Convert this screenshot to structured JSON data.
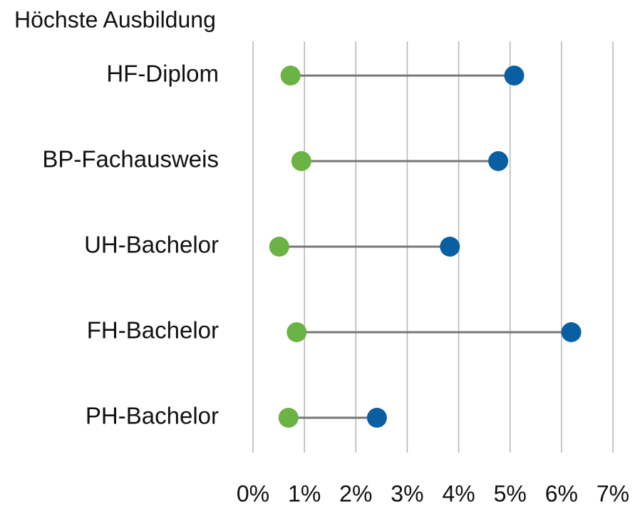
{
  "chart_data": {
    "type": "dumbbell",
    "title": "Höchste Ausbildung",
    "categories": [
      "HF-Diplom",
      "BP-Fachausweis",
      "UH-Bachelor",
      "FH-Bachelor",
      "PH-Bachelor"
    ],
    "series": [
      {
        "color": "#6ab344",
        "values": [
          0.73,
          0.94,
          0.51,
          0.85,
          0.69
        ]
      },
      {
        "color": "#0a5fa3",
        "values": [
          5.08,
          4.77,
          3.83,
          6.19,
          2.41
        ]
      }
    ],
    "xlim": [
      0,
      7
    ],
    "xticks": [
      {
        "value": 0,
        "label": "0%"
      },
      {
        "value": 1,
        "label": "1%"
      },
      {
        "value": 2,
        "label": "2%"
      },
      {
        "value": 3,
        "label": "3%"
      },
      {
        "value": 4,
        "label": "4%"
      },
      {
        "value": 5,
        "label": "5%"
      },
      {
        "value": 6,
        "label": "6%"
      },
      {
        "value": 7,
        "label": "7%"
      }
    ],
    "grid": true
  }
}
